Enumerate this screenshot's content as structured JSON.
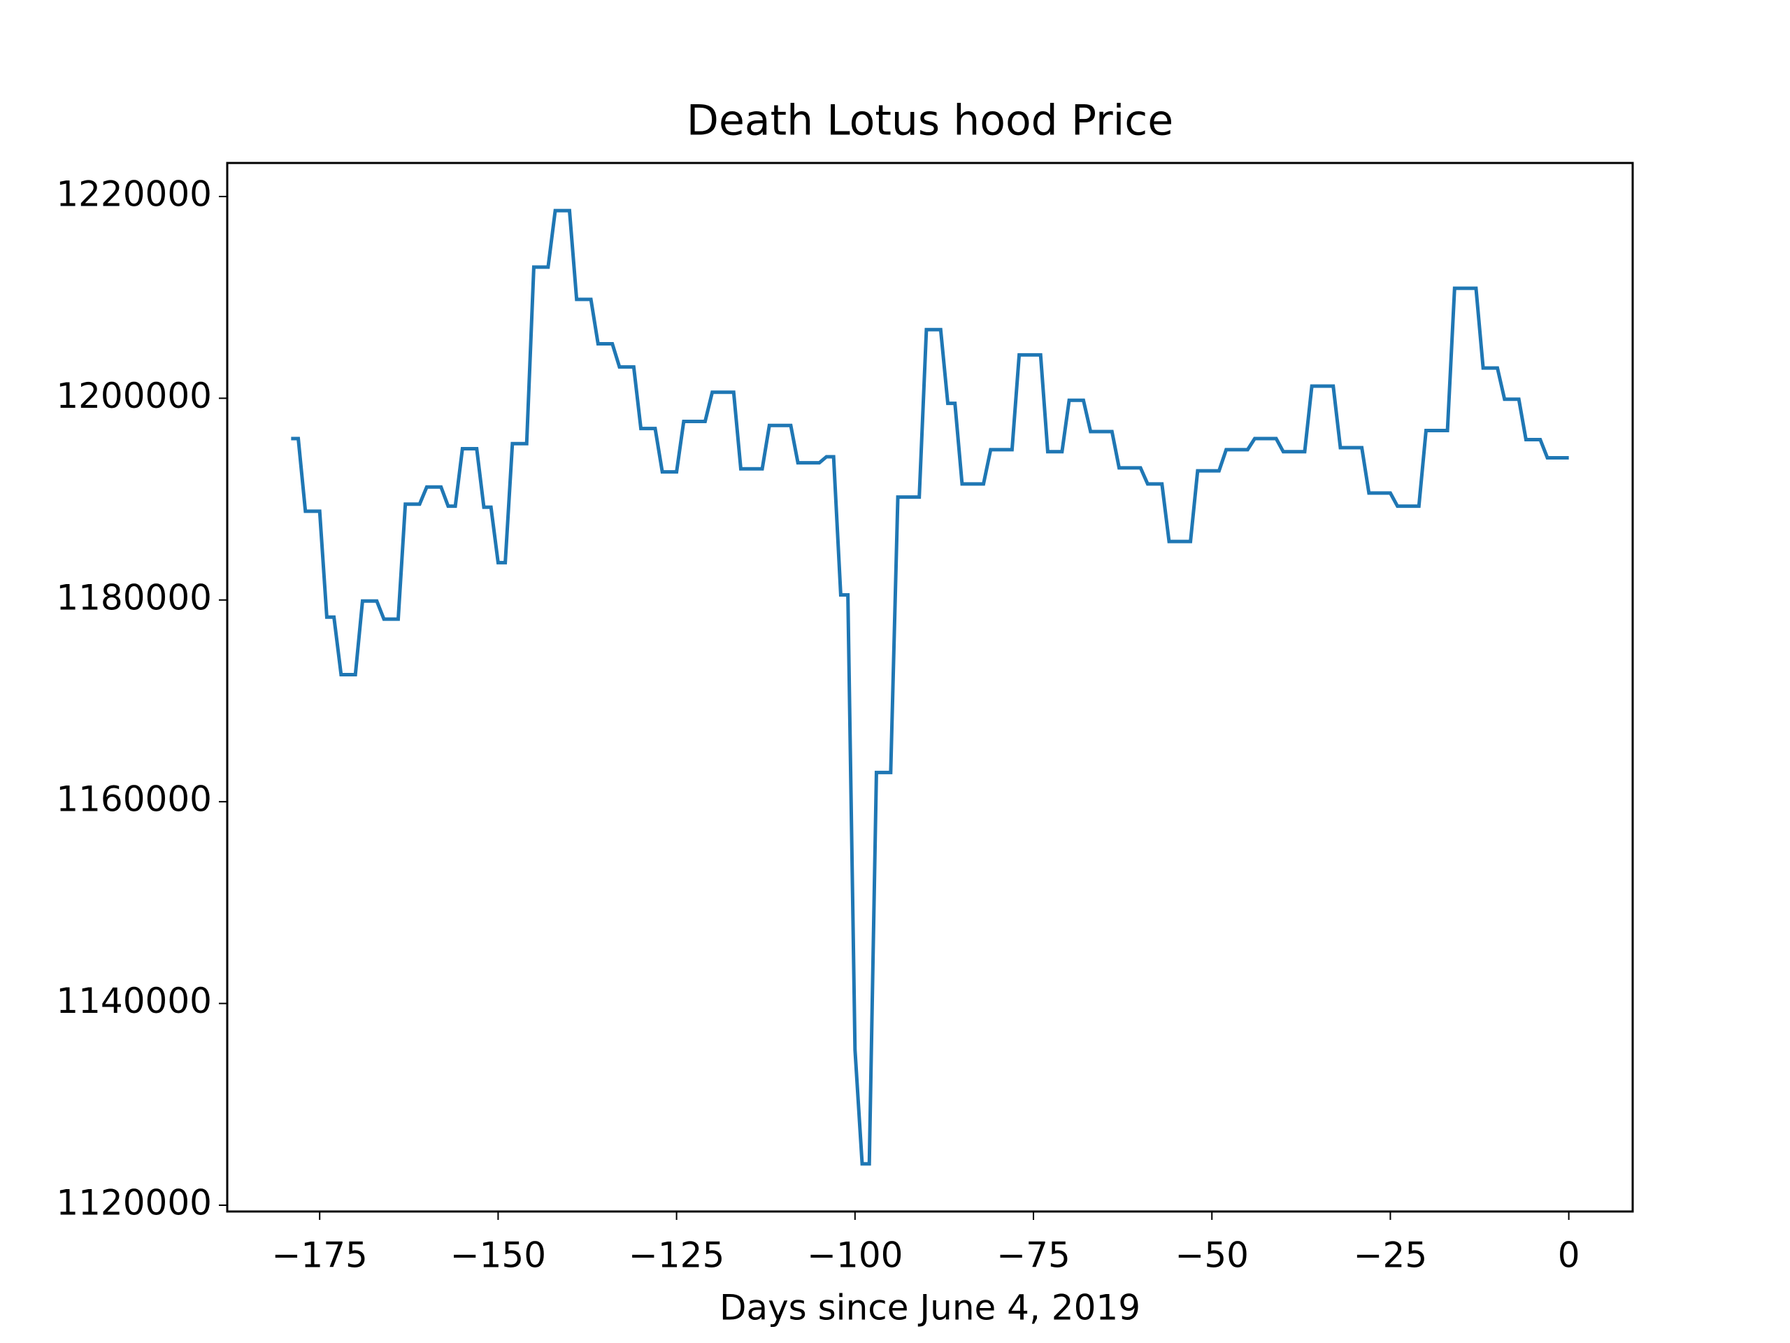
{
  "chart_data": {
    "type": "line",
    "title": "Death Lotus hood Price",
    "x_label": "Days since June 4, 2019",
    "x": [
      -179,
      -178,
      -177,
      -175,
      -174,
      -173,
      -172,
      -170,
      -169,
      -167,
      -166,
      -164,
      -163,
      -161,
      -160,
      -158,
      -157,
      -156,
      -155,
      -153,
      -152,
      -151,
      -150,
      -149,
      -148,
      -146,
      -145,
      -143,
      -142,
      -140,
      -139,
      -137,
      -136,
      -134,
      -133,
      -131,
      -130,
      -128,
      -127,
      -125,
      -124,
      -121,
      -120,
      -117,
      -116,
      -113,
      -112,
      -109,
      -108,
      -105,
      -104,
      -103,
      -102,
      -101,
      -100,
      -99,
      -98,
      -97,
      -95,
      -94,
      -91,
      -90,
      -88,
      -87,
      -86,
      -85,
      -82,
      -81,
      -78,
      -77,
      -74,
      -73,
      -71,
      -70,
      -68,
      -67,
      -64,
      -63,
      -60,
      -59,
      -57,
      -56,
      -53,
      -52,
      -49,
      -48,
      -45,
      -44,
      -41,
      -40,
      -37,
      -36,
      -33,
      -32,
      -29,
      -28,
      -25,
      -24,
      -21,
      -20,
      -17,
      -16,
      -13,
      -12,
      -10,
      -9,
      -7,
      -6,
      -4,
      -3,
      0
    ],
    "series": [
      {
        "color": "#1f77b4",
        "values": [
          1196000,
          1196000,
          1188800,
          1188800,
          1178300,
          1178300,
          1172600,
          1172600,
          1179900,
          1179900,
          1178100,
          1178100,
          1189500,
          1189500,
          1191200,
          1191200,
          1189300,
          1189300,
          1195000,
          1195000,
          1189200,
          1189200,
          1183700,
          1183700,
          1195500,
          1195500,
          1213000,
          1213000,
          1218600,
          1218600,
          1209800,
          1209800,
          1205400,
          1205400,
          1203100,
          1203100,
          1197000,
          1197000,
          1192700,
          1192700,
          1197700,
          1197700,
          1200600,
          1200600,
          1193000,
          1193000,
          1197300,
          1197300,
          1193600,
          1193600,
          1194200,
          1194200,
          1180500,
          1180500,
          1135400,
          1124100,
          1124100,
          1162900,
          1162900,
          1190200,
          1190200,
          1206800,
          1206800,
          1199500,
          1199500,
          1191500,
          1191500,
          1194900,
          1194900,
          1204300,
          1204300,
          1194700,
          1194700,
          1199800,
          1199800,
          1196700,
          1196700,
          1193100,
          1193100,
          1191500,
          1191500,
          1185800,
          1185800,
          1192800,
          1192800,
          1194900,
          1194900,
          1196000,
          1196000,
          1194700,
          1194700,
          1201200,
          1201200,
          1195100,
          1195100,
          1190600,
          1190600,
          1189300,
          1189300,
          1196800,
          1196800,
          1210900,
          1210900,
          1203000,
          1203000,
          1199900,
          1199900,
          1195900,
          1195900,
          1194100,
          1194100
        ]
      }
    ],
    "xlim": [
      -187.95,
      8.95
    ],
    "xticks": [
      {
        "value": -175,
        "label": "−175"
      },
      {
        "value": -150,
        "label": "−150"
      },
      {
        "value": -125,
        "label": "−125"
      },
      {
        "value": -100,
        "label": "−100"
      },
      {
        "value": -75,
        "label": "−75"
      },
      {
        "value": -50,
        "label": "−50"
      },
      {
        "value": -25,
        "label": "−25"
      },
      0
    ],
    "ylim": [
      1119375,
      1223325
    ],
    "yticks": [
      1120000,
      1140000,
      1160000,
      1180000,
      1200000,
      1220000
    ]
  }
}
